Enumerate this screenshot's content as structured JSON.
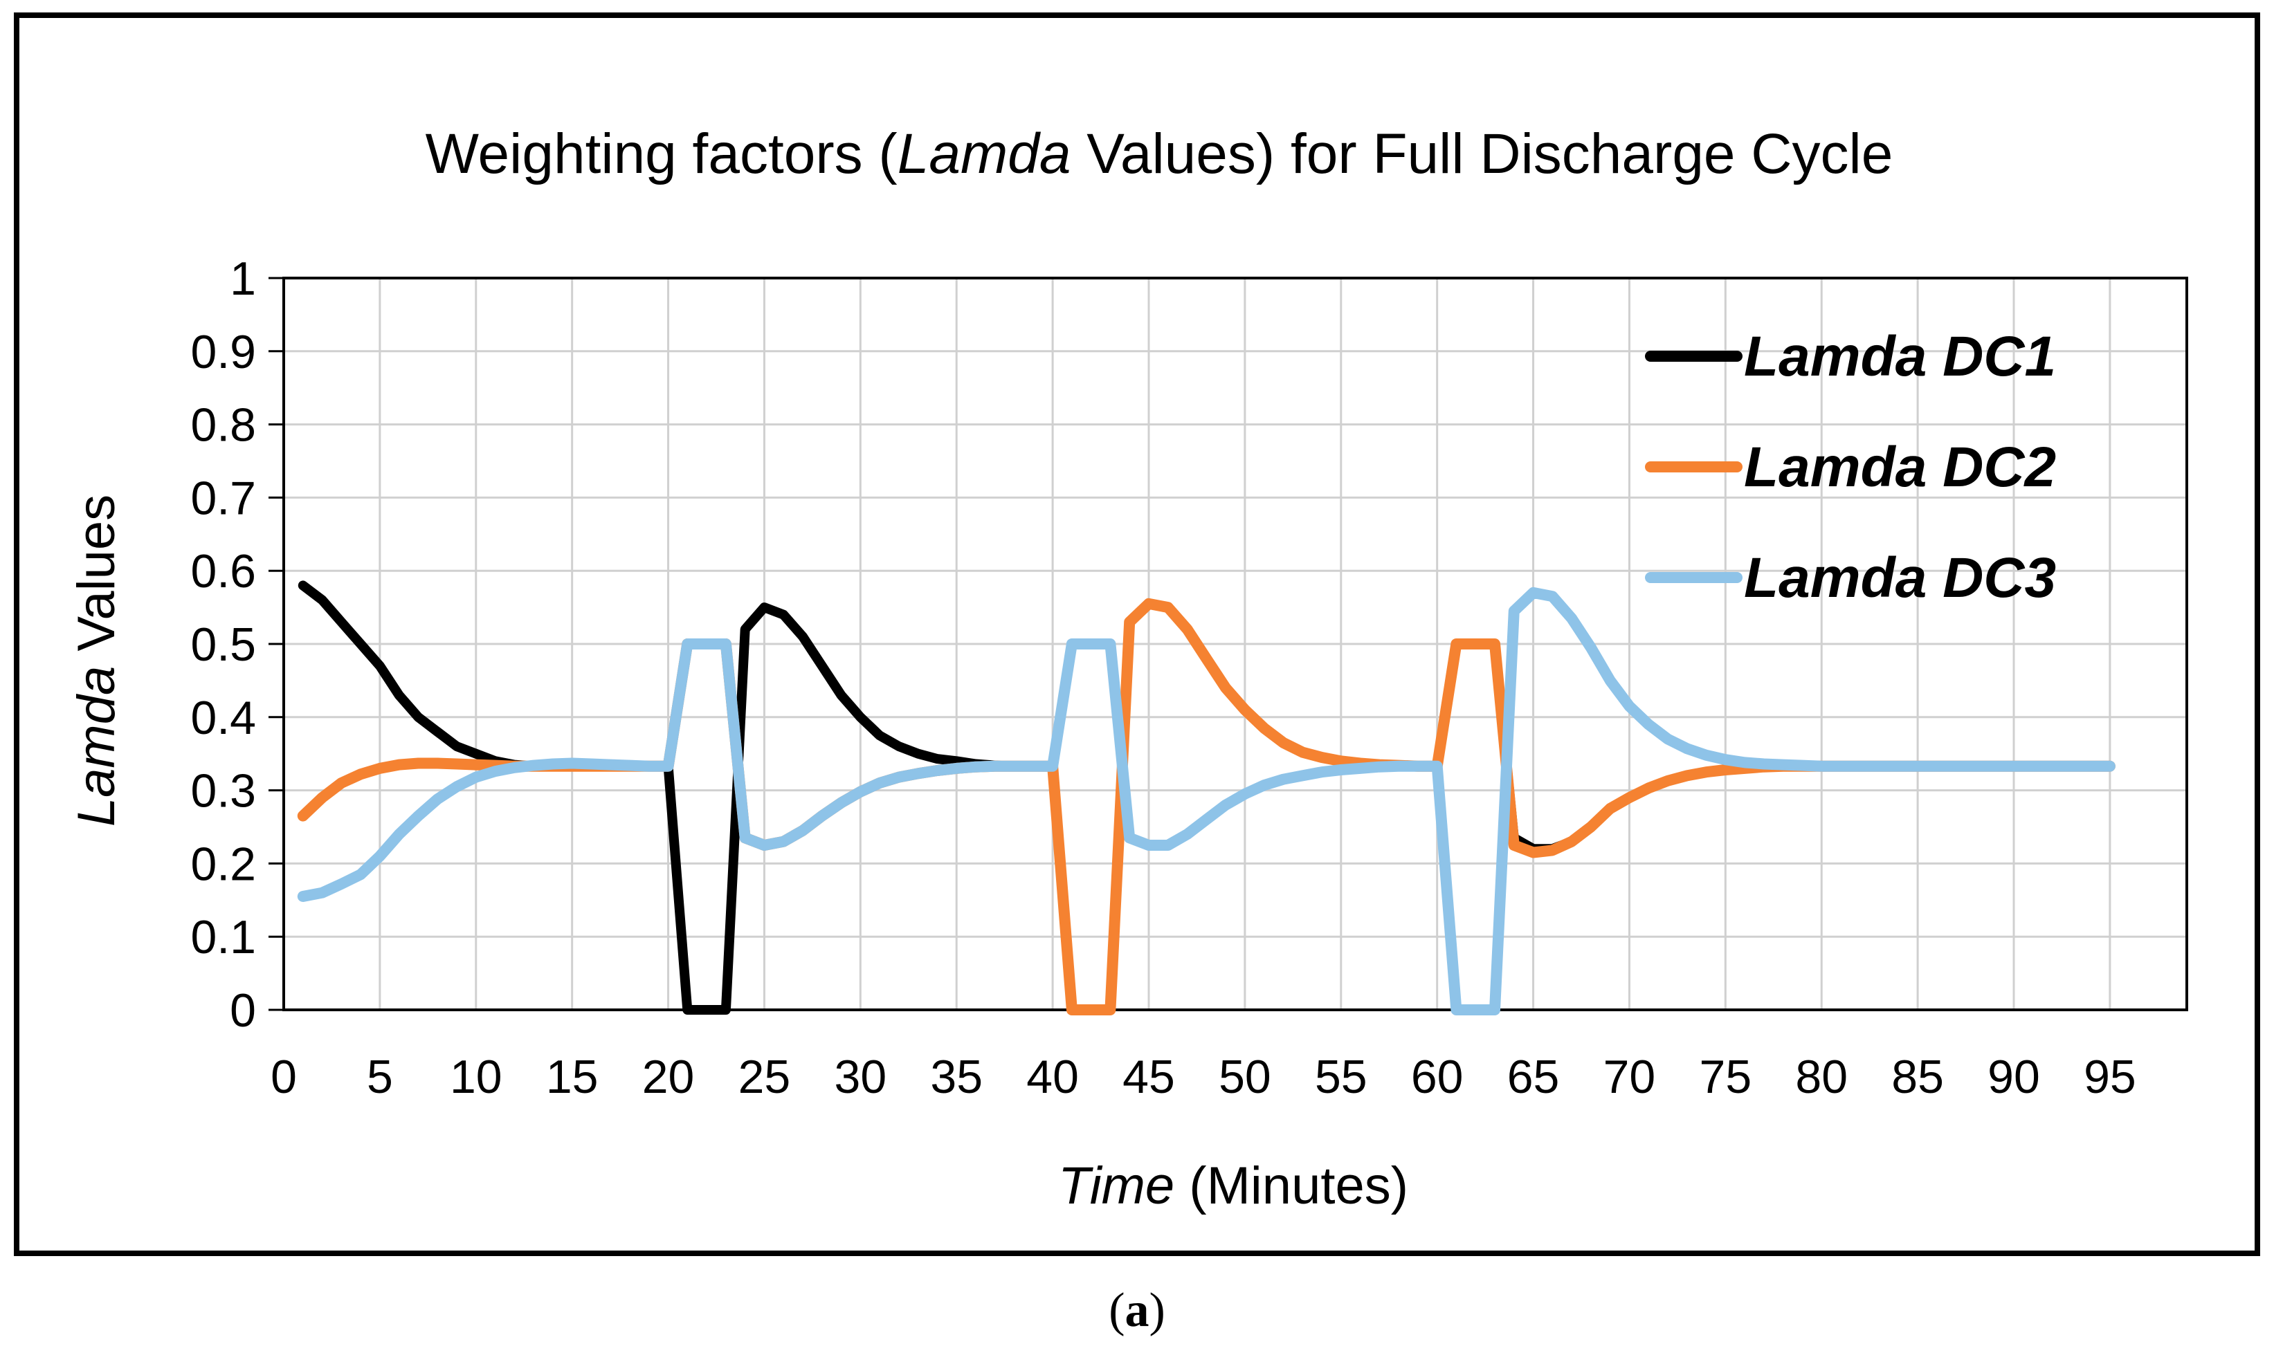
{
  "chart_data": {
    "type": "line",
    "title": {
      "prefix": "Weighting factors (",
      "italic": "Lamda",
      "suffix": " Values) for Full Discharge Cycle"
    },
    "xlabel": {
      "italic": "Time",
      "rest": " (Minutes)"
    },
    "ylabel": {
      "italic": "Lamda",
      "rest": " Values"
    },
    "xlim": [
      0,
      99
    ],
    "ylim": [
      0,
      1
    ],
    "x_ticks": [
      "0",
      "5",
      "10",
      "15",
      "20",
      "25",
      "30",
      "35",
      "40",
      "45",
      "50",
      "55",
      "60",
      "65",
      "70",
      "75",
      "80",
      "85",
      "90",
      "95"
    ],
    "y_ticks": [
      "0",
      "0.1",
      "0.2",
      "0.3",
      "0.4",
      "0.5",
      "0.6",
      "0.7",
      "0.8",
      "0.9",
      "1"
    ],
    "grid": true,
    "legend_position": "top-right",
    "series": [
      {
        "name": "Lamda DC1",
        "color": "#000000",
        "points": [
          [
            1,
            0.58
          ],
          [
            2,
            0.56
          ],
          [
            3,
            0.53
          ],
          [
            4,
            0.5
          ],
          [
            5,
            0.47
          ],
          [
            6,
            0.43
          ],
          [
            7,
            0.4
          ],
          [
            8,
            0.38
          ],
          [
            9,
            0.36
          ],
          [
            10,
            0.35
          ],
          [
            11,
            0.34
          ],
          [
            12,
            0.335
          ],
          [
            13,
            0.333
          ],
          [
            14,
            0.333
          ],
          [
            15,
            0.333
          ],
          [
            16,
            0.333
          ],
          [
            17,
            0.333
          ],
          [
            18,
            0.333
          ],
          [
            19,
            0.333
          ],
          [
            20,
            0.333
          ],
          [
            21,
            0
          ],
          [
            22,
            0
          ],
          [
            23,
            0
          ],
          [
            24,
            0.52
          ],
          [
            25,
            0.55
          ],
          [
            26,
            0.54
          ],
          [
            27,
            0.51
          ],
          [
            28,
            0.47
          ],
          [
            29,
            0.43
          ],
          [
            30,
            0.4
          ],
          [
            31,
            0.375
          ],
          [
            32,
            0.36
          ],
          [
            33,
            0.35
          ],
          [
            34,
            0.343
          ],
          [
            35,
            0.34
          ],
          [
            36,
            0.336
          ],
          [
            37,
            0.334
          ],
          [
            38,
            0.333
          ],
          [
            39,
            0.333
          ],
          [
            40,
            0.333
          ],
          [
            41,
            0.5
          ],
          [
            42,
            0.5
          ],
          [
            43,
            0.5
          ],
          [
            44,
            0.235
          ],
          [
            45,
            0.225
          ],
          [
            46,
            0.225
          ],
          [
            47,
            0.24
          ],
          [
            48,
            0.26
          ],
          [
            49,
            0.28
          ],
          [
            50,
            0.295
          ],
          [
            51,
            0.307
          ],
          [
            52,
            0.315
          ],
          [
            53,
            0.32
          ],
          [
            54,
            0.325
          ],
          [
            55,
            0.328
          ],
          [
            56,
            0.33
          ],
          [
            57,
            0.332
          ],
          [
            58,
            0.333
          ],
          [
            59,
            0.333
          ],
          [
            60,
            0.333
          ],
          [
            61,
            0.5
          ],
          [
            62,
            0.5
          ],
          [
            63,
            0.5
          ],
          [
            64,
            0.235
          ],
          [
            65,
            0.22
          ],
          [
            66,
            0.22
          ],
          [
            67,
            0.23
          ],
          [
            68,
            0.25
          ],
          [
            69,
            0.275
          ],
          [
            70,
            0.29
          ],
          [
            71,
            0.303
          ],
          [
            72,
            0.313
          ],
          [
            73,
            0.32
          ],
          [
            74,
            0.325
          ],
          [
            75,
            0.328
          ],
          [
            76,
            0.33
          ],
          [
            77,
            0.332
          ],
          [
            78,
            0.333
          ],
          [
            79,
            0.333
          ],
          [
            80,
            0.333
          ],
          [
            81,
            0.333
          ],
          [
            82,
            0.333
          ],
          [
            83,
            0.333
          ],
          [
            84,
            0.333
          ],
          [
            85,
            0.333
          ],
          [
            86,
            0.333
          ],
          [
            87,
            0.333
          ],
          [
            88,
            0.333
          ],
          [
            89,
            0.333
          ],
          [
            90,
            0.333
          ],
          [
            91,
            0.333
          ],
          [
            92,
            0.333
          ],
          [
            93,
            0.333
          ],
          [
            94,
            0.333
          ],
          [
            95,
            0.333
          ]
        ]
      },
      {
        "name": "Lamda DC2",
        "color": "#f58231",
        "points": [
          [
            1,
            0.265
          ],
          [
            2,
            0.29
          ],
          [
            3,
            0.31
          ],
          [
            4,
            0.322
          ],
          [
            5,
            0.33
          ],
          [
            6,
            0.335
          ],
          [
            7,
            0.337
          ],
          [
            8,
            0.337
          ],
          [
            9,
            0.336
          ],
          [
            10,
            0.335
          ],
          [
            11,
            0.334
          ],
          [
            12,
            0.333
          ],
          [
            13,
            0.333
          ],
          [
            14,
            0.333
          ],
          [
            15,
            0.333
          ],
          [
            16,
            0.333
          ],
          [
            17,
            0.333
          ],
          [
            18,
            0.333
          ],
          [
            19,
            0.333
          ],
          [
            20,
            0.333
          ],
          [
            21,
            0.5
          ],
          [
            22,
            0.5
          ],
          [
            23,
            0.5
          ],
          [
            24,
            0.235
          ],
          [
            25,
            0.225
          ],
          [
            26,
            0.23
          ],
          [
            27,
            0.245
          ],
          [
            28,
            0.265
          ],
          [
            29,
            0.283
          ],
          [
            30,
            0.298
          ],
          [
            31,
            0.31
          ],
          [
            32,
            0.318
          ],
          [
            33,
            0.323
          ],
          [
            34,
            0.327
          ],
          [
            35,
            0.33
          ],
          [
            36,
            0.332
          ],
          [
            37,
            0.333
          ],
          [
            38,
            0.333
          ],
          [
            39,
            0.333
          ],
          [
            40,
            0.333
          ],
          [
            41,
            0
          ],
          [
            42,
            0
          ],
          [
            43,
            0
          ],
          [
            44,
            0.53
          ],
          [
            45,
            0.555
          ],
          [
            46,
            0.55
          ],
          [
            47,
            0.52
          ],
          [
            48,
            0.48
          ],
          [
            49,
            0.44
          ],
          [
            50,
            0.41
          ],
          [
            51,
            0.385
          ],
          [
            52,
            0.365
          ],
          [
            53,
            0.352
          ],
          [
            54,
            0.345
          ],
          [
            55,
            0.34
          ],
          [
            56,
            0.337
          ],
          [
            57,
            0.335
          ],
          [
            58,
            0.334
          ],
          [
            59,
            0.333
          ],
          [
            60,
            0.333
          ],
          [
            61,
            0.5
          ],
          [
            62,
            0.5
          ],
          [
            63,
            0.5
          ],
          [
            64,
            0.225
          ],
          [
            65,
            0.215
          ],
          [
            66,
            0.218
          ],
          [
            67,
            0.23
          ],
          [
            68,
            0.25
          ],
          [
            69,
            0.275
          ],
          [
            70,
            0.29
          ],
          [
            71,
            0.303
          ],
          [
            72,
            0.313
          ],
          [
            73,
            0.32
          ],
          [
            74,
            0.325
          ],
          [
            75,
            0.328
          ],
          [
            76,
            0.33
          ],
          [
            77,
            0.332
          ],
          [
            78,
            0.333
          ],
          [
            79,
            0.333
          ],
          [
            80,
            0.333
          ],
          [
            81,
            0.333
          ],
          [
            82,
            0.333
          ],
          [
            83,
            0.333
          ],
          [
            84,
            0.333
          ],
          [
            85,
            0.333
          ],
          [
            86,
            0.333
          ],
          [
            87,
            0.333
          ],
          [
            88,
            0.333
          ],
          [
            89,
            0.333
          ],
          [
            90,
            0.333
          ],
          [
            91,
            0.333
          ],
          [
            92,
            0.333
          ],
          [
            93,
            0.333
          ],
          [
            94,
            0.333
          ],
          [
            95,
            0.333
          ]
        ]
      },
      {
        "name": "Lamda DC3",
        "color": "#8ec3e8",
        "points": [
          [
            1,
            0.155
          ],
          [
            2,
            0.16
          ],
          [
            3,
            0.172
          ],
          [
            4,
            0.185
          ],
          [
            5,
            0.21
          ],
          [
            6,
            0.24
          ],
          [
            7,
            0.265
          ],
          [
            8,
            0.288
          ],
          [
            9,
            0.305
          ],
          [
            10,
            0.318
          ],
          [
            11,
            0.326
          ],
          [
            12,
            0.331
          ],
          [
            13,
            0.334
          ],
          [
            14,
            0.336
          ],
          [
            15,
            0.337
          ],
          [
            16,
            0.336
          ],
          [
            17,
            0.335
          ],
          [
            18,
            0.334
          ],
          [
            19,
            0.333
          ],
          [
            20,
            0.333
          ],
          [
            21,
            0.5
          ],
          [
            22,
            0.5
          ],
          [
            23,
            0.5
          ],
          [
            24,
            0.235
          ],
          [
            25,
            0.225
          ],
          [
            26,
            0.23
          ],
          [
            27,
            0.245
          ],
          [
            28,
            0.265
          ],
          [
            29,
            0.283
          ],
          [
            30,
            0.298
          ],
          [
            31,
            0.31
          ],
          [
            32,
            0.318
          ],
          [
            33,
            0.323
          ],
          [
            34,
            0.327
          ],
          [
            35,
            0.33
          ],
          [
            36,
            0.332
          ],
          [
            37,
            0.333
          ],
          [
            38,
            0.333
          ],
          [
            39,
            0.333
          ],
          [
            40,
            0.333
          ],
          [
            41,
            0.5
          ],
          [
            42,
            0.5
          ],
          [
            43,
            0.5
          ],
          [
            44,
            0.235
          ],
          [
            45,
            0.225
          ],
          [
            46,
            0.225
          ],
          [
            47,
            0.24
          ],
          [
            48,
            0.26
          ],
          [
            49,
            0.28
          ],
          [
            50,
            0.295
          ],
          [
            51,
            0.307
          ],
          [
            52,
            0.315
          ],
          [
            53,
            0.32
          ],
          [
            54,
            0.325
          ],
          [
            55,
            0.328
          ],
          [
            56,
            0.33
          ],
          [
            57,
            0.332
          ],
          [
            58,
            0.333
          ],
          [
            59,
            0.333
          ],
          [
            60,
            0.333
          ],
          [
            61,
            0
          ],
          [
            62,
            0
          ],
          [
            63,
            0
          ],
          [
            64,
            0.545
          ],
          [
            65,
            0.57
          ],
          [
            66,
            0.565
          ],
          [
            67,
            0.535
          ],
          [
            68,
            0.495
          ],
          [
            69,
            0.45
          ],
          [
            70,
            0.415
          ],
          [
            71,
            0.39
          ],
          [
            72,
            0.37
          ],
          [
            73,
            0.357
          ],
          [
            74,
            0.348
          ],
          [
            75,
            0.342
          ],
          [
            76,
            0.338
          ],
          [
            77,
            0.336
          ],
          [
            78,
            0.335
          ],
          [
            79,
            0.334
          ],
          [
            80,
            0.333
          ],
          [
            81,
            0.333
          ],
          [
            82,
            0.333
          ],
          [
            83,
            0.333
          ],
          [
            84,
            0.333
          ],
          [
            85,
            0.333
          ],
          [
            86,
            0.333
          ],
          [
            87,
            0.333
          ],
          [
            88,
            0.333
          ],
          [
            89,
            0.333
          ],
          [
            90,
            0.333
          ],
          [
            91,
            0.333
          ],
          [
            92,
            0.333
          ],
          [
            93,
            0.333
          ],
          [
            94,
            0.333
          ],
          [
            95,
            0.333
          ]
        ]
      }
    ]
  },
  "caption": {
    "open": "(",
    "bold": "a",
    "close": ")"
  }
}
